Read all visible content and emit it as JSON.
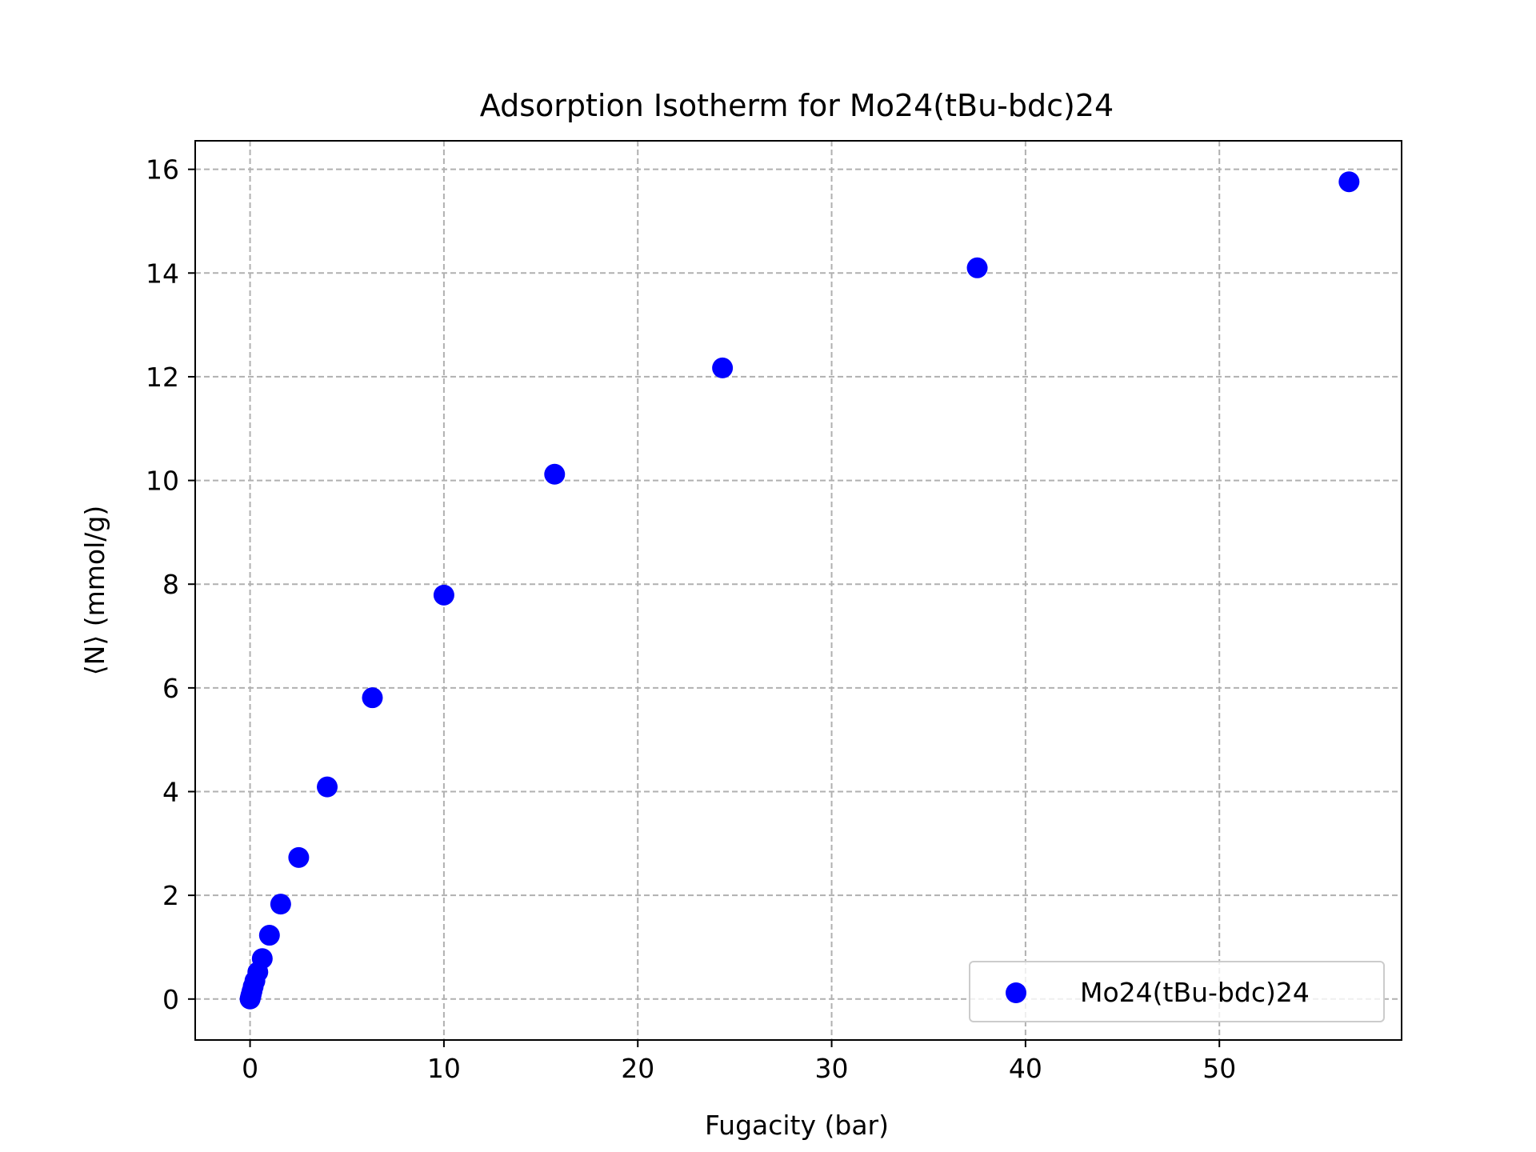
{
  "chart_data": {
    "type": "scatter",
    "title": "Adsorption Isotherm for Mo24(tBu-bdc)24",
    "xlabel": "Fugacity (bar)",
    "ylabel": "⟨N⟩ (mmol/g)",
    "xlim": [
      -2.83,
      59.4
    ],
    "ylim": [
      -0.79,
      16.55
    ],
    "xticks": [
      0,
      10,
      20,
      30,
      40,
      50
    ],
    "yticks": [
      0,
      2,
      4,
      6,
      8,
      10,
      12,
      14,
      16
    ],
    "grid": true,
    "legend_position": "bottom-right",
    "series": [
      {
        "name": "Mo24(tBu-bdc)24",
        "color": "#0000ff",
        "marker": "circle",
        "points": [
          {
            "x": 0.0,
            "y": 0.0
          },
          {
            "x": 0.02,
            "y": 0.03
          },
          {
            "x": 0.04,
            "y": 0.06
          },
          {
            "x": 0.06,
            "y": 0.09
          },
          {
            "x": 0.1,
            "y": 0.15
          },
          {
            "x": 0.16,
            "y": 0.24
          },
          {
            "x": 0.25,
            "y": 0.35
          },
          {
            "x": 0.4,
            "y": 0.52
          },
          {
            "x": 0.63,
            "y": 0.78
          },
          {
            "x": 1.0,
            "y": 1.23
          },
          {
            "x": 1.58,
            "y": 1.83
          },
          {
            "x": 2.51,
            "y": 2.73
          },
          {
            "x": 3.98,
            "y": 4.09
          },
          {
            "x": 6.31,
            "y": 5.81
          },
          {
            "x": 10.0,
            "y": 7.79
          },
          {
            "x": 15.71,
            "y": 10.12
          },
          {
            "x": 24.37,
            "y": 12.17
          },
          {
            "x": 37.51,
            "y": 14.1
          },
          {
            "x": 56.69,
            "y": 15.76
          }
        ]
      }
    ]
  }
}
